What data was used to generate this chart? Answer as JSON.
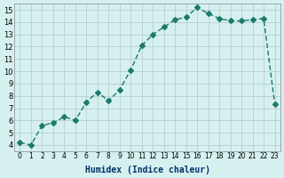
{
  "x": [
    0,
    1,
    2,
    3,
    4,
    5,
    6,
    7,
    8,
    9,
    10,
    11,
    12,
    13,
    14,
    15,
    16,
    17,
    18,
    19,
    20,
    21,
    22,
    23
  ],
  "y": [
    4.2,
    4.0,
    5.6,
    5.8,
    6.3,
    6.0,
    7.5,
    8.3,
    7.6,
    8.5,
    10.1,
    12.1,
    13.0,
    13.6,
    14.2,
    14.4,
    15.2,
    14.7,
    14.3,
    14.1,
    14.1,
    14.2,
    14.3,
    7.3
  ],
  "line_color": "#1a7a6e",
  "marker": "D",
  "marker_size": 3,
  "bg_color": "#d6f0f0",
  "grid_color": "#b0c8c8",
  "xlabel": "Humidex (Indice chaleur)",
  "xlim": [
    -0.5,
    23.5
  ],
  "ylim": [
    3.5,
    15.5
  ],
  "yticks": [
    4,
    5,
    6,
    7,
    8,
    9,
    10,
    11,
    12,
    13,
    14,
    15
  ],
  "xticks": [
    0,
    1,
    2,
    3,
    4,
    5,
    6,
    7,
    8,
    9,
    10,
    11,
    12,
    13,
    14,
    15,
    16,
    17,
    18,
    19,
    20,
    21,
    22,
    23
  ]
}
